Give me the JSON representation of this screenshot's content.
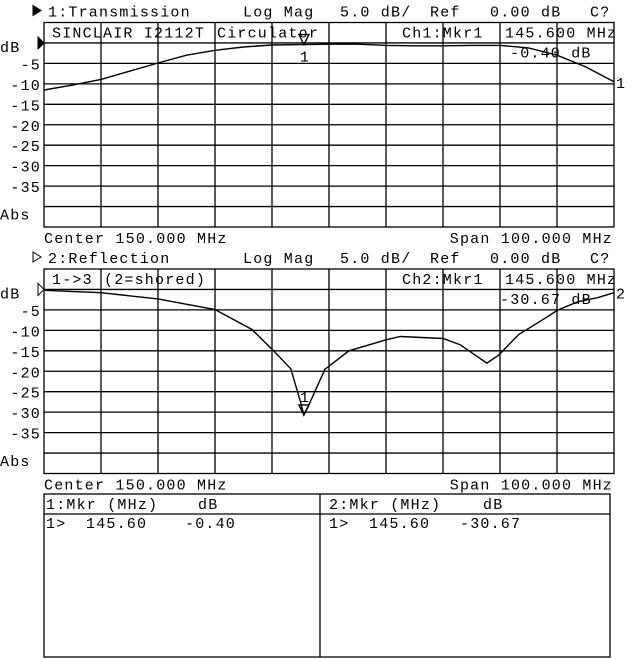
{
  "chart_data": [
    {
      "type": "line",
      "channel_label": "1:Transmission",
      "format": "Log Mag",
      "scale": "5.0 dB/",
      "ref_label": "Ref",
      "ref_value": "0.00 dB",
      "cal_status": "C?",
      "title_annotations": [
        "SINCLAIR I2112T",
        "Circulator"
      ],
      "marker_readout": {
        "channel": "Ch1:Mkr1",
        "frequency": "145.600 MHz",
        "value": "-0.40 dB"
      },
      "marker": {
        "label": "1",
        "x": 145.6,
        "y": -0.4
      },
      "trace_end_label": "1",
      "ylabel": "dB",
      "yticks": [
        "-5",
        "-10",
        "-15",
        "-20",
        "-25",
        "-30",
        "-35"
      ],
      "ytick_values": [
        -5,
        -10,
        -15,
        -20,
        -25,
        -30,
        -35
      ],
      "ylabel_bottom": "Abs",
      "ylim": [
        -45,
        5
      ],
      "xlim": [
        100,
        200
      ],
      "grid": true,
      "center_label": "Center 150.000 MHz",
      "span_label": "Span 100.000 MHz",
      "x": [
        100,
        105,
        110,
        115,
        120,
        125,
        130,
        135,
        140,
        145,
        145.6,
        150,
        155,
        160,
        165,
        170,
        175,
        180,
        185,
        190,
        195,
        200
      ],
      "y": [
        -11.5,
        -10.3,
        -8.9,
        -6.9,
        -4.9,
        -3.0,
        -1.8,
        -1.0,
        -0.5,
        -0.4,
        -0.4,
        -0.3,
        -0.3,
        -0.6,
        -0.7,
        -0.7,
        -0.6,
        -0.6,
        -1.2,
        -3.0,
        -5.8,
        -9.5
      ]
    },
    {
      "type": "line",
      "channel_label": "2:Reflection",
      "format": "Log Mag",
      "scale": "5.0 dB/",
      "ref_label": "Ref",
      "ref_value": "0.00 dB",
      "cal_status": "C?",
      "title_annotations": [
        "1->3",
        "(2=shored)"
      ],
      "marker_readout": {
        "channel": "Ch2:Mkr1",
        "frequency": "145.600 MHz",
        "value": "-30.67 dB"
      },
      "marker": {
        "label": "1",
        "x": 145.6,
        "y": -30.67
      },
      "trace_end_label": "2",
      "ylabel": "dB",
      "yticks": [
        "-5",
        "-10",
        "-15",
        "-20",
        "-25",
        "-30",
        "-35"
      ],
      "ytick_values": [
        -5,
        -10,
        -15,
        -20,
        -25,
        -30,
        -35
      ],
      "ylabel_bottom": "Abs",
      "ylim": [
        -45,
        5
      ],
      "xlim": [
        100,
        200
      ],
      "grid": true,
      "center_label": "Center 150.000 MHz",
      "span_label": "Span 100.000 MHz",
      "x": [
        100,
        110,
        120,
        130,
        136.5,
        140,
        143.3,
        145,
        145.6,
        146.7,
        149.3,
        153.5,
        160,
        162.5,
        170,
        173,
        175.6,
        177.7,
        179.8,
        183.3,
        186.8,
        190.2,
        193.7,
        197.2,
        200
      ],
      "y": [
        -0.2,
        -0.8,
        -2.3,
        -4.9,
        -9.8,
        -14.6,
        -19.4,
        -27.5,
        -30.67,
        -27.5,
        -19.5,
        -15,
        -12.3,
        -11.5,
        -12,
        -13.5,
        -16,
        -18,
        -16,
        -11,
        -8,
        -5,
        -3,
        -2,
        -0.8
      ]
    }
  ],
  "marker_table": [
    {
      "header_marker": "1:Mkr (MHz)",
      "header_unit": "dB",
      "rows": [
        {
          "id": "1>",
          "freq": "145.60",
          "value": "-0.40"
        }
      ]
    },
    {
      "header_marker": "2:Mkr (MHz)",
      "header_unit": "dB",
      "rows": [
        {
          "id": "1>",
          "freq": "145.60",
          "value": "-30.67"
        }
      ]
    }
  ]
}
